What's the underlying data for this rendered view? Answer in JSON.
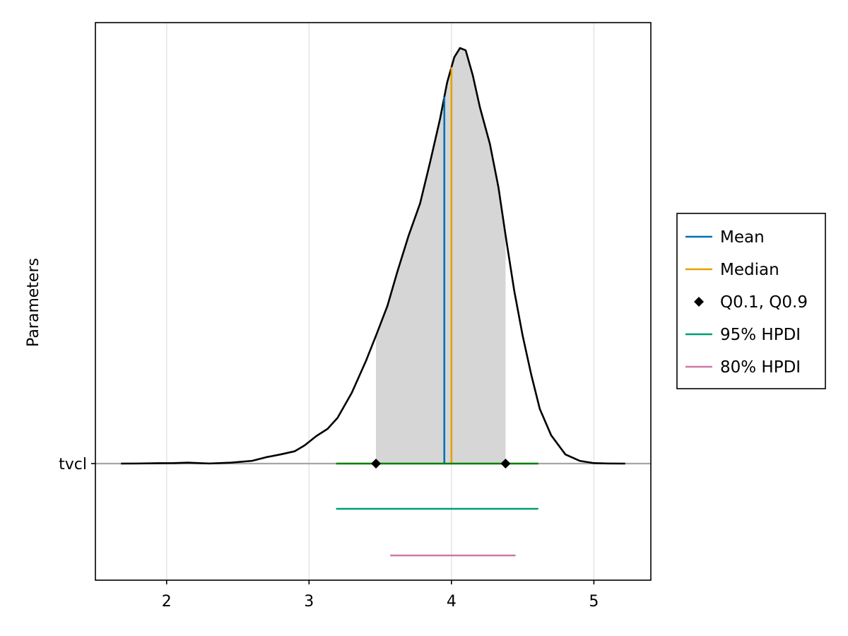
{
  "chart_data": {
    "type": "density",
    "ylabel": "Parameters",
    "xlim": [
      1.5,
      5.4
    ],
    "xticks": [
      2,
      3,
      4,
      5
    ],
    "parameter": "tvcl",
    "density": {
      "x": [
        1.68,
        1.8,
        1.95,
        2.05,
        2.15,
        2.3,
        2.45,
        2.6,
        2.7,
        2.8,
        2.9,
        2.97,
        3.05,
        3.13,
        3.2,
        3.3,
        3.4,
        3.47,
        3.55,
        3.62,
        3.7,
        3.78,
        3.85,
        3.92,
        3.97,
        4.02,
        4.06,
        4.1,
        4.15,
        4.2,
        4.27,
        4.33,
        4.38,
        4.44,
        4.5,
        4.56,
        4.62,
        4.7,
        4.8,
        4.9,
        5.0,
        5.1,
        5.22
      ],
      "y": [
        0.0,
        0.002,
        0.008,
        0.01,
        0.02,
        0.002,
        0.02,
        0.06,
        0.14,
        0.2,
        0.27,
        0.4,
        0.6,
        0.76,
        1.0,
        1.55,
        2.25,
        2.8,
        3.45,
        4.2,
        5.0,
        5.7,
        6.6,
        7.55,
        8.35,
        8.9,
        9.1,
        9.05,
        8.5,
        7.8,
        7.0,
        6.05,
        5.0,
        3.8,
        2.8,
        1.95,
        1.2,
        0.62,
        0.2,
        0.06,
        0.01,
        0.002,
        0.0
      ]
    },
    "shaded_region": [
      3.47,
      4.38
    ],
    "mean": 3.95,
    "median": 4.0,
    "quantiles": [
      3.47,
      4.38
    ],
    "hpdi_95": [
      3.19,
      4.61
    ],
    "hpdi_80": [
      3.57,
      4.45
    ],
    "colors": {
      "density": "#000000",
      "fill": "#d6d6d6",
      "mean": "#0072b2",
      "median": "#e69f00",
      "quantile": "#000000",
      "hpdi_95": "#009e73",
      "hpdi_80": "#cc79a7",
      "baseline_range": "#008000"
    },
    "legend": {
      "position": "right",
      "entries": [
        {
          "label": "Mean",
          "marker": "line",
          "color_key": "mean"
        },
        {
          "label": "Median",
          "marker": "line",
          "color_key": "median"
        },
        {
          "label": "Q0.1, Q0.9",
          "marker": "diamond",
          "color_key": "quantile"
        },
        {
          "label": "95% HPDI",
          "marker": "line",
          "color_key": "hpdi_95"
        },
        {
          "label": "80% HPDI",
          "marker": "line",
          "color_key": "hpdi_80"
        }
      ]
    },
    "grid": true
  }
}
